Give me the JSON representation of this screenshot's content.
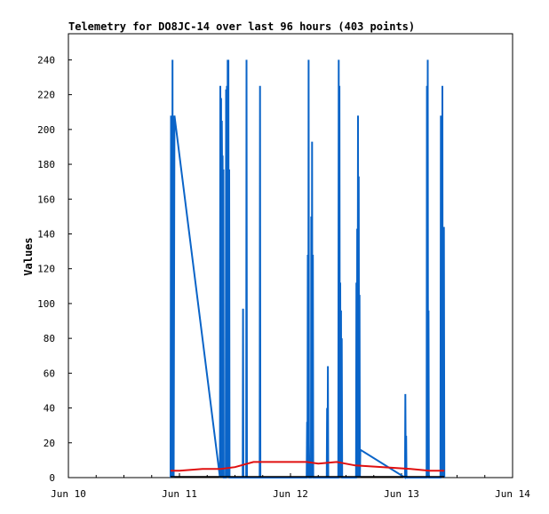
{
  "chart_data": {
    "type": "line",
    "title": "Telemetry for DO8JC-14 over last 96 hours (403 points)",
    "xlabel": "",
    "ylabel": "Values",
    "x_ticks": [
      "Jun 10",
      "Jun 11",
      "Jun 12",
      "Jun 13",
      "Jun 14"
    ],
    "xlim": [
      "Jun 10 00:00",
      "Jun 14 00:00"
    ],
    "y_ticks": [
      0,
      20,
      40,
      60,
      80,
      100,
      120,
      140,
      160,
      180,
      200,
      220,
      240
    ],
    "ylim": [
      0,
      255
    ],
    "grid": false,
    "legend": "none",
    "series": [
      {
        "color": "#0a64c8",
        "points": [
          [
            "Jun 10 22:05",
            0
          ],
          [
            "Jun 10 22:10",
            208
          ],
          [
            "Jun 10 22:15",
            0
          ],
          [
            "Jun 10 22:20",
            192
          ],
          [
            "Jun 10 22:25",
            0
          ],
          [
            "Jun 10 22:30",
            240
          ],
          [
            "Jun 10 22:35",
            0
          ],
          [
            "Jun 10 22:40",
            208
          ],
          [
            "Jun 10 22:45",
            0
          ],
          [
            "Jun 10 22:55",
            208
          ],
          [
            "Jun 11 08:45",
            0
          ],
          [
            "Jun 11 08:50",
            225
          ],
          [
            "Jun 11 08:55",
            160
          ],
          [
            "Jun 11 09:00",
            218
          ],
          [
            "Jun 11 09:05",
            0
          ],
          [
            "Jun 11 09:10",
            205
          ],
          [
            "Jun 11 09:15",
            160
          ],
          [
            "Jun 11 09:20",
            185
          ],
          [
            "Jun 11 09:25",
            0
          ],
          [
            "Jun 11 09:30",
            177
          ],
          [
            "Jun 11 09:35",
            0
          ],
          [
            "Jun 11 10:00",
            0
          ],
          [
            "Jun 11 10:05",
            223
          ],
          [
            "Jun 11 10:10",
            110
          ],
          [
            "Jun 11 10:15",
            225
          ],
          [
            "Jun 11 10:20",
            0
          ],
          [
            "Jun 11 10:25",
            240
          ],
          [
            "Jun 11 10:30",
            160
          ],
          [
            "Jun 11 10:35",
            240
          ],
          [
            "Jun 11 10:40",
            0
          ],
          [
            "Jun 11 10:45",
            177
          ],
          [
            "Jun 11 10:50",
            0
          ],
          [
            "Jun 11 13:40",
            0
          ],
          [
            "Jun 11 13:45",
            97
          ],
          [
            "Jun 11 13:50",
            0
          ],
          [
            "Jun 11 14:25",
            0
          ],
          [
            "Jun 11 14:30",
            240
          ],
          [
            "Jun 11 14:35",
            0
          ],
          [
            "Jun 11 17:20",
            0
          ],
          [
            "Jun 11 17:25",
            225
          ],
          [
            "Jun 11 17:30",
            0
          ],
          [
            "Jun 12 03:30",
            0
          ],
          [
            "Jun 12 03:35",
            32
          ],
          [
            "Jun 12 03:40",
            0
          ],
          [
            "Jun 12 03:45",
            128
          ],
          [
            "Jun 12 03:50",
            0
          ],
          [
            "Jun 12 03:55",
            240
          ],
          [
            "Jun 12 04:00",
            20
          ],
          [
            "Jun 12 04:05",
            0
          ],
          [
            "Jun 12 04:25",
            0
          ],
          [
            "Jun 12 04:30",
            150
          ],
          [
            "Jun 12 04:35",
            0
          ],
          [
            "Jun 12 04:40",
            193
          ],
          [
            "Jun 12 04:45",
            0
          ],
          [
            "Jun 12 04:50",
            128
          ],
          [
            "Jun 12 04:55",
            0
          ],
          [
            "Jun 12 07:50",
            0
          ],
          [
            "Jun 12 07:55",
            40
          ],
          [
            "Jun 12 08:00",
            0
          ],
          [
            "Jun 12 08:05",
            64
          ],
          [
            "Jun 12 08:10",
            0
          ],
          [
            "Jun 12 10:20",
            0
          ],
          [
            "Jun 12 10:25",
            240
          ],
          [
            "Jun 12 10:30",
            0
          ],
          [
            "Jun 12 10:35",
            225
          ],
          [
            "Jun 12 10:40",
            0
          ],
          [
            "Jun 12 10:45",
            112
          ],
          [
            "Jun 12 10:50",
            0
          ],
          [
            "Jun 12 10:55",
            96
          ],
          [
            "Jun 12 11:00",
            0
          ],
          [
            "Jun 12 11:05",
            80
          ],
          [
            "Jun 12 11:10",
            0
          ],
          [
            "Jun 12 14:10",
            0
          ],
          [
            "Jun 12 14:15",
            112
          ],
          [
            "Jun 12 14:20",
            0
          ],
          [
            "Jun 12 14:25",
            143
          ],
          [
            "Jun 12 14:30",
            0
          ],
          [
            "Jun 12 14:35",
            208
          ],
          [
            "Jun 12 14:40",
            0
          ],
          [
            "Jun 12 14:45",
            173
          ],
          [
            "Jun 12 14:50",
            0
          ],
          [
            "Jun 12 14:55",
            105
          ],
          [
            "Jun 12 15:00",
            0
          ],
          [
            "Jun 12 15:05",
            16
          ],
          [
            "Jun 13 00:45",
            0
          ],
          [
            "Jun 13 00:50",
            48
          ],
          [
            "Jun 13 00:55",
            0
          ],
          [
            "Jun 13 01:00",
            24
          ],
          [
            "Jun 13 01:05",
            0
          ],
          [
            "Jun 13 05:25",
            0
          ],
          [
            "Jun 13 05:30",
            225
          ],
          [
            "Jun 13 05:35",
            0
          ],
          [
            "Jun 13 05:40",
            240
          ],
          [
            "Jun 13 05:45",
            0
          ],
          [
            "Jun 13 05:50",
            96
          ],
          [
            "Jun 13 05:55",
            0
          ],
          [
            "Jun 13 08:25",
            0
          ],
          [
            "Jun 13 08:30",
            208
          ],
          [
            "Jun 13 08:35",
            0
          ],
          [
            "Jun 13 08:40",
            193
          ],
          [
            "Jun 13 08:45",
            0
          ],
          [
            "Jun 13 08:50",
            225
          ],
          [
            "Jun 13 08:55",
            0
          ],
          [
            "Jun 13 09:00",
            80
          ],
          [
            "Jun 13 09:05",
            0
          ],
          [
            "Jun 13 09:10",
            144
          ],
          [
            "Jun 13 09:15",
            0
          ]
        ]
      },
      {
        "color": "#e01010",
        "points": [
          [
            "Jun 10 22:05",
            4
          ],
          [
            "Jun 11 00:00",
            4
          ],
          [
            "Jun 11 05:00",
            5
          ],
          [
            "Jun 11 09:00",
            5
          ],
          [
            "Jun 11 12:00",
            6
          ],
          [
            "Jun 11 16:00",
            9
          ],
          [
            "Jun 11 22:00",
            9
          ],
          [
            "Jun 12 03:30",
            9
          ],
          [
            "Jun 12 06:00",
            8
          ],
          [
            "Jun 12 10:00",
            9
          ],
          [
            "Jun 12 14:00",
            7
          ],
          [
            "Jun 12 20:00",
            6
          ],
          [
            "Jun 13 02:00",
            5
          ],
          [
            "Jun 13 06:00",
            4
          ],
          [
            "Jun 13 09:15",
            4
          ]
        ]
      },
      {
        "color": "#000000",
        "points": [
          [
            "Jun 10 22:05",
            0.5
          ],
          [
            "Jun 13 09:15",
            0.5
          ]
        ]
      }
    ]
  }
}
